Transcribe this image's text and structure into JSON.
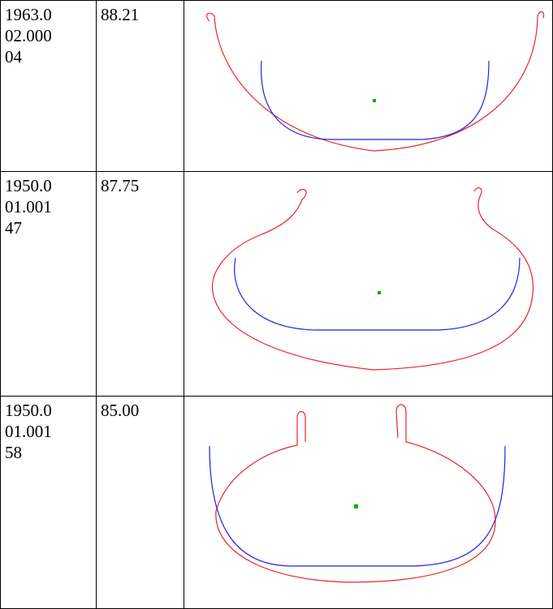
{
  "table": {
    "rows": [
      [
        "1963.002.00004",
        "88.21"
      ],
      [
        "1950.001.00147",
        "87.75"
      ],
      [
        "1950.001.00158",
        "85.00"
      ]
    ]
  }
}
